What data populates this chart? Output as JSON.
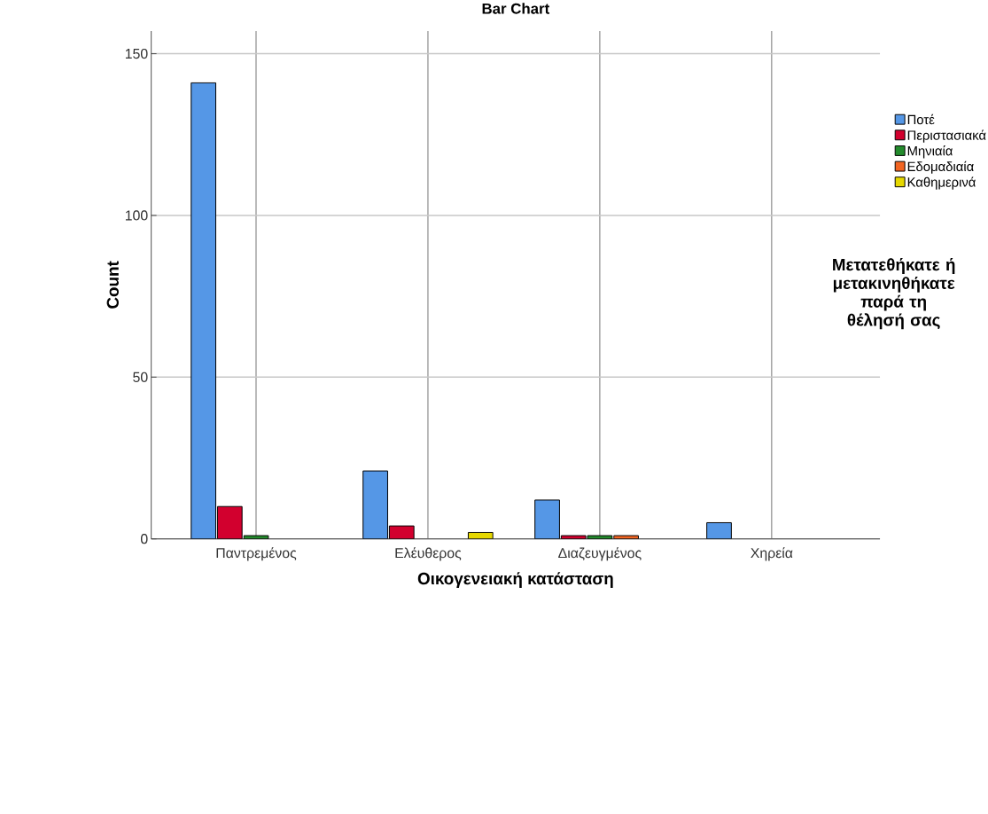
{
  "chart_data": {
    "type": "bar",
    "title": "Bar Chart",
    "xlabel": "Οικογενειακή κατάσταση",
    "ylabel": "Count",
    "legend_title": "Μετατεθήκατε ή μετακινηθήκατε παρά τη θέλησή σας",
    "categories": [
      "Παντρεμένος",
      "Ελέυθερος",
      "Διαζευγμένος",
      "Χηρεία"
    ],
    "series": [
      {
        "name": "Ποτέ",
        "color": "#5597e6",
        "values": [
          141,
          21,
          12,
          5
        ]
      },
      {
        "name": "Περιστασιακά",
        "color": "#d2002e",
        "values": [
          10,
          4,
          1,
          null
        ]
      },
      {
        "name": "Μηνιαία",
        "color": "#238b2c",
        "values": [
          1,
          null,
          1,
          null
        ]
      },
      {
        "name": "Εδομαδιαία",
        "color": "#f26522",
        "values": [
          null,
          null,
          1,
          null
        ]
      },
      {
        "name": "Καθημερινά",
        "color": "#e6d800",
        "values": [
          null,
          2,
          null,
          null
        ]
      }
    ],
    "ylim": [
      0,
      157
    ],
    "yticks": [
      0,
      50,
      100,
      150
    ],
    "grid": true,
    "legend": "right"
  }
}
